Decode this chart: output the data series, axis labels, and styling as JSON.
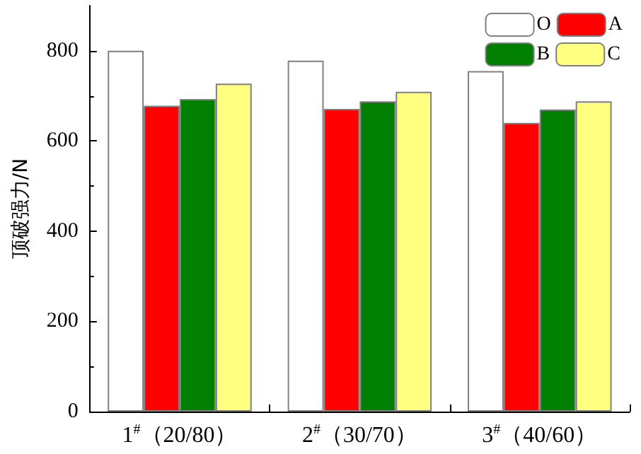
{
  "chart_data": {
    "type": "bar",
    "ylabel": "顶破强力/N",
    "categories": [
      "1$^{#}$（20/80）",
      "2$^{#}$（30/70）",
      "3$^{#}$（40/60）"
    ],
    "series": [
      {
        "name": "O",
        "color": "#ffffff",
        "values": [
          800,
          778,
          755
        ]
      },
      {
        "name": "A",
        "color": "#ff0000",
        "values": [
          678,
          671,
          640
        ]
      },
      {
        "name": "B",
        "color": "#007f00",
        "values": [
          693,
          688,
          670
        ]
      },
      {
        "name": "C",
        "color": "#ffff80",
        "values": [
          727,
          709,
          688
        ]
      }
    ],
    "ylim": [
      0,
      900
    ],
    "yticks": [
      0,
      200,
      400,
      600,
      800
    ],
    "grid": false,
    "legend": "top right"
  }
}
